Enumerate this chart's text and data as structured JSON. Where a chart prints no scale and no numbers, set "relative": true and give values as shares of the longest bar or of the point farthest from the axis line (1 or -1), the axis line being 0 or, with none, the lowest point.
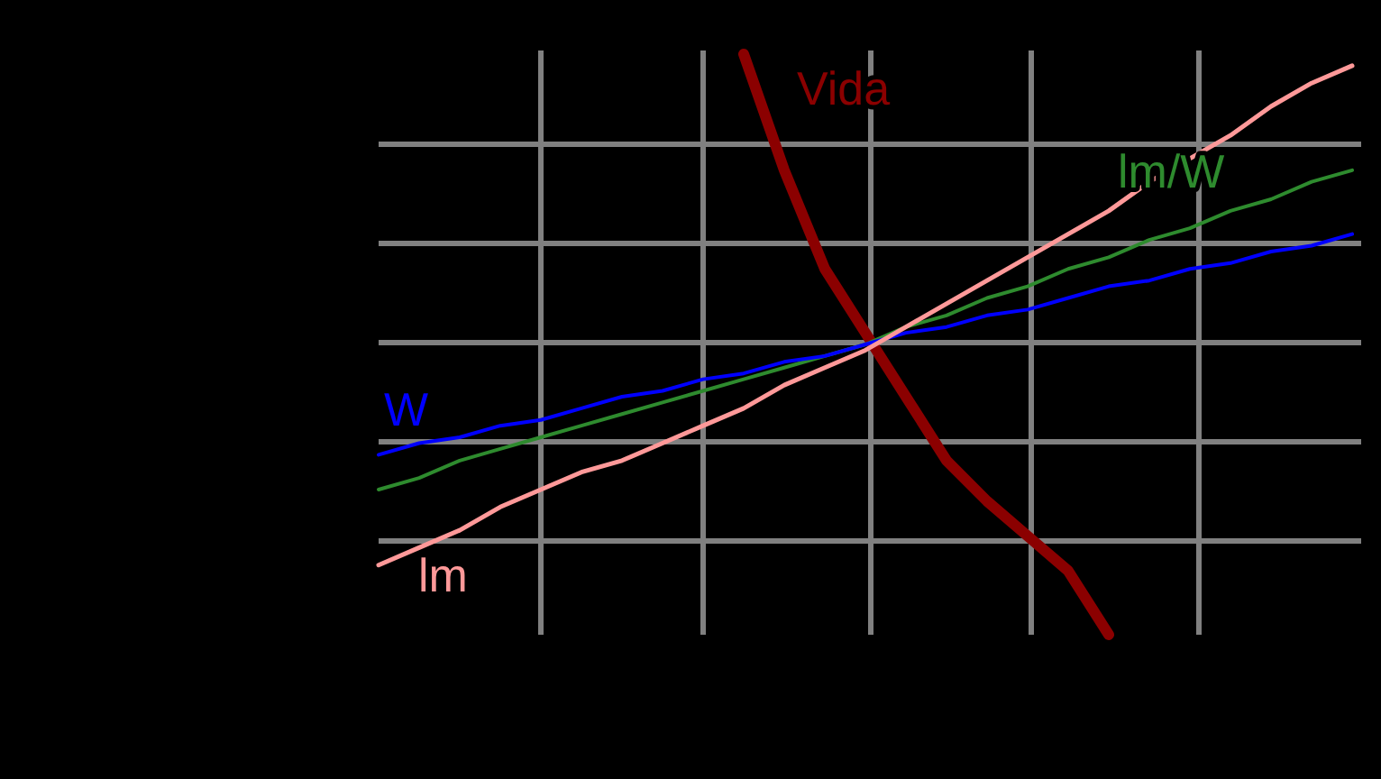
{
  "chart_data": {
    "type": "line",
    "relative": true,
    "grid": true,
    "line_style": "solid",
    "categories": [
      null,
      null,
      null,
      null,
      null,
      null,
      null,
      null,
      null,
      null,
      null,
      null,
      null,
      null,
      null,
      null,
      null,
      null,
      null,
      null,
      null,
      null,
      null,
      null,
      null
    ],
    "series": [
      {
        "name": "Vida",
        "color": "#8b0000",
        "values": [
          null,
          null,
          null,
          null,
          null,
          null,
          null,
          null,
          null,
          1.0,
          0.8,
          0.63,
          0.52,
          0.41,
          0.3,
          0.23,
          0.17,
          0.11,
          0.0,
          null,
          null,
          null,
          null,
          null,
          null
        ]
      },
      {
        "name": "lm/W",
        "color": "#2e8b2e",
        "values": [
          0.25,
          0.27,
          0.3,
          0.32,
          0.34,
          0.36,
          0.38,
          0.4,
          0.42,
          0.44,
          0.46,
          0.48,
          0.5,
          0.53,
          0.55,
          0.58,
          0.6,
          0.63,
          0.65,
          0.68,
          0.7,
          0.73,
          0.75,
          0.78,
          0.8
        ]
      },
      {
        "name": "W",
        "color": "#0000ff",
        "values": [
          0.31,
          0.33,
          0.34,
          0.36,
          0.37,
          0.39,
          0.41,
          0.42,
          0.44,
          0.45,
          0.47,
          0.48,
          0.5,
          0.52,
          0.53,
          0.55,
          0.56,
          0.58,
          0.6,
          0.61,
          0.63,
          0.64,
          0.66,
          0.67,
          0.69
        ]
      },
      {
        "name": "lm",
        "color": "#ff9999",
        "values": [
          0.12,
          0.15,
          0.18,
          0.22,
          0.25,
          0.28,
          0.3,
          0.33,
          0.36,
          0.39,
          0.43,
          0.46,
          0.49,
          0.53,
          0.57,
          0.61,
          0.65,
          0.69,
          0.73,
          0.78,
          0.82,
          0.86,
          0.91,
          0.95,
          0.98
        ]
      }
    ]
  }
}
